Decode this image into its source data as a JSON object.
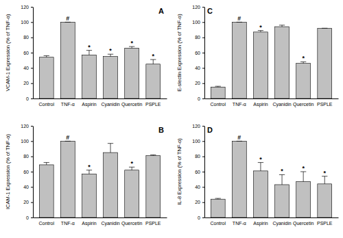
{
  "chart_data": [
    {
      "type": "bar",
      "title": "A",
      "y_label": "VCAM-1 Expression (% of TNF-α)",
      "categories": [
        "Control",
        "TNF-α",
        "Aspirin",
        "Cyanidin",
        "Quercetin",
        "PSPLE"
      ],
      "values": [
        54,
        100,
        57,
        55,
        66,
        45
      ],
      "errors": [
        2,
        0,
        6,
        3,
        2,
        6
      ],
      "annotations": [
        null,
        "#",
        "*",
        "*",
        "*",
        "*"
      ],
      "color": "#c0c0c0",
      "ylim": [
        0,
        120
      ],
      "yticks": [
        0,
        20,
        40,
        60,
        80,
        100,
        120
      ]
    },
    {
      "type": "bar",
      "title": "B",
      "y_label": "ICAM-1 Expression (% of TNF-α)",
      "categories": [
        "Control",
        "TNF-α",
        "Aspirin",
        "Cyanidin",
        "Quercetin",
        "PSPLE"
      ],
      "values": [
        69,
        100,
        57,
        85,
        62,
        81
      ],
      "errors": [
        3,
        0,
        5,
        12,
        4,
        1
      ],
      "annotations": [
        null,
        "#",
        "*",
        null,
        "*",
        null
      ],
      "color": "#c0c0c0",
      "ylim": [
        0,
        120
      ],
      "yticks": [
        0,
        20,
        40,
        60,
        80,
        100,
        120
      ]
    },
    {
      "type": "bar",
      "title": "C",
      "y_label": "E-slectin Expression (% of TNF-α)",
      "categories": [
        "Control",
        "TNF-α",
        "Aspirin",
        "Cyanidin",
        "Quercetin",
        "PSPLE"
      ],
      "values": [
        15,
        100,
        87,
        94,
        46,
        92
      ],
      "errors": [
        1,
        0,
        2,
        2,
        2,
        0
      ],
      "annotations": [
        null,
        "#",
        "*",
        null,
        "*",
        null
      ],
      "color": "#c0c0c0",
      "ylim": [
        0,
        120
      ],
      "yticks": [
        0,
        20,
        40,
        60,
        80,
        100,
        120
      ]
    },
    {
      "type": "bar",
      "title": "D",
      "y_label": "IL-8 Expression (% of TNF-α)",
      "categories": [
        "Control",
        "TNF-α",
        "Aspirin",
        "Cyanidin",
        "Quercetin",
        "PSPLE"
      ],
      "values": [
        24,
        100,
        61,
        43,
        47,
        44
      ],
      "errors": [
        1,
        0,
        11,
        13,
        13,
        10
      ],
      "annotations": [
        null,
        "#",
        "*",
        "*",
        "*",
        "*"
      ],
      "color": "#c0c0c0",
      "ylim": [
        0,
        120
      ],
      "yticks": [
        0,
        20,
        40,
        60,
        80,
        100,
        120
      ]
    }
  ]
}
